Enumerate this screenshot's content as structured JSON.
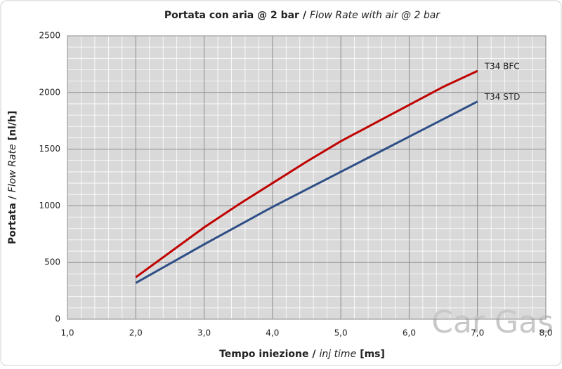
{
  "chart_data": {
    "type": "line",
    "title": [
      "Portata con aria @ 2 bar /",
      "Flow Rate with air @ 2 bar"
    ],
    "y_label": [
      "Portata /",
      "Flow Rate",
      "[nl/h]"
    ],
    "x_label": [
      "Tempo iniezione /",
      "inj time",
      "[ms]"
    ],
    "watermark": "Car Gas",
    "x": [
      2.0,
      2.5,
      3.0,
      3.5,
      4.0,
      4.5,
      5.0,
      5.5,
      6.0,
      6.5,
      7.0
    ],
    "series": [
      {
        "name": "T34 BFC",
        "color": "#c00000",
        "values": [
          370,
          590,
          810,
          1010,
          1200,
          1390,
          1570,
          1730,
          1890,
          2050,
          2190
        ]
      },
      {
        "name": "T34 STD",
        "color": "#2e4f86",
        "values": [
          320,
          490,
          660,
          825,
          990,
          1145,
          1300,
          1455,
          1610,
          1765,
          1920
        ]
      }
    ],
    "xlim": [
      1,
      8
    ],
    "xticks": [
      {
        "value": 1,
        "label": "1,0"
      },
      {
        "value": 2,
        "label": "2,0"
      },
      {
        "value": 3,
        "label": "3,0"
      },
      {
        "value": 4,
        "label": "4,0"
      },
      {
        "value": 5,
        "label": "5,0"
      },
      {
        "value": 6,
        "label": "6,0"
      },
      {
        "value": 7,
        "label": "7,0"
      },
      {
        "value": 8,
        "label": "8,0"
      }
    ],
    "ylim": [
      0,
      2500
    ],
    "yticks": [
      0,
      500,
      1000,
      1500,
      2000,
      2500
    ],
    "grid": true
  }
}
